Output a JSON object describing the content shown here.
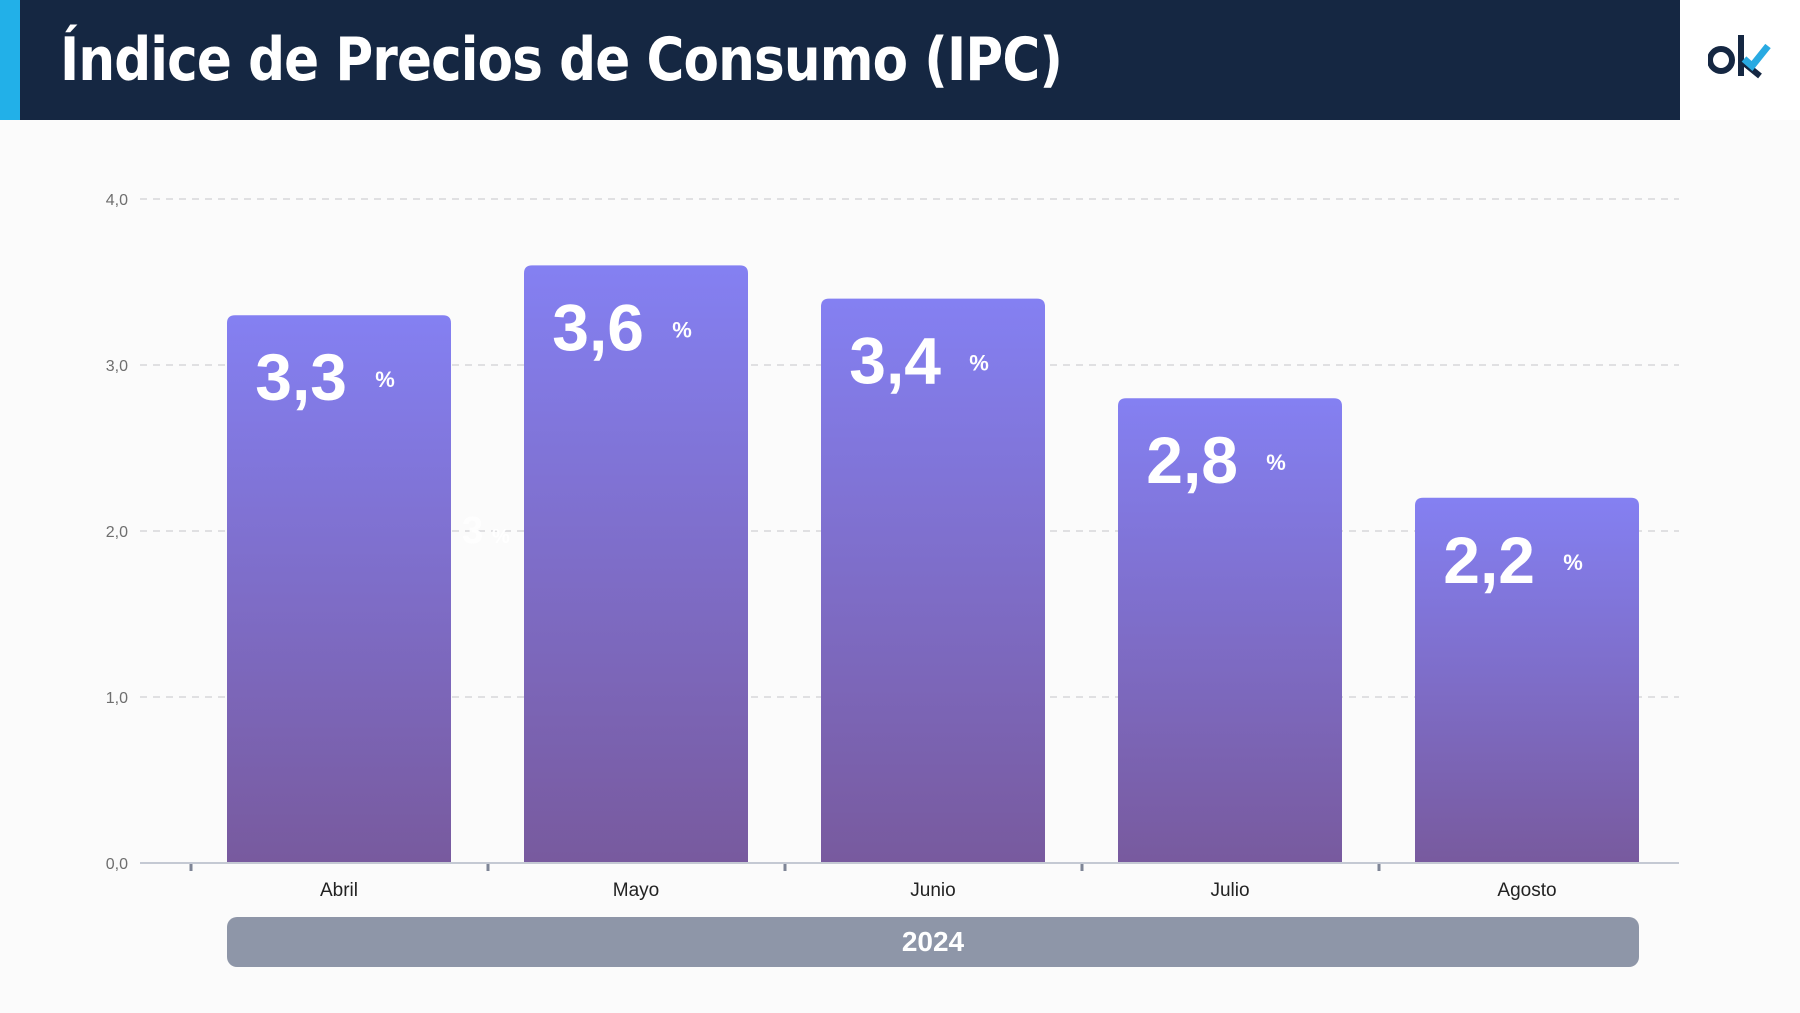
{
  "header": {
    "title": "Índice de Precios de Consumo (IPC)",
    "logo_icon": "ok-logo-checkmark",
    "colors": {
      "bar": "#152742",
      "accent": "#22b0e8",
      "logo_check": "#29aae2"
    }
  },
  "chart_data": {
    "type": "bar",
    "title": "Índice de Precios de Consumo (IPC)",
    "categories": [
      "Abril",
      "Mayo",
      "Junio",
      "Julio",
      "Agosto"
    ],
    "values": [
      3.3,
      3.6,
      3.4,
      2.8,
      2.2
    ],
    "value_labels": [
      "3,3",
      "3,6",
      "3,4",
      "2,8",
      "2,2"
    ],
    "value_unit": "%",
    "xlabel": "",
    "ylabel": "",
    "ylim": [
      0,
      4
    ],
    "yticks": [
      0,
      1,
      2,
      3,
      4
    ],
    "ytick_labels": [
      "0,0",
      "1,0",
      "2,0",
      "3,0",
      "4,0"
    ],
    "grid": true,
    "group_label": "2024",
    "colors": {
      "bar_top": "#8480f2",
      "bar_bottom": "#785a9e",
      "group_band": "#8e96a8"
    },
    "ghost_artifact": {
      "text": "3",
      "unit": "%"
    }
  }
}
